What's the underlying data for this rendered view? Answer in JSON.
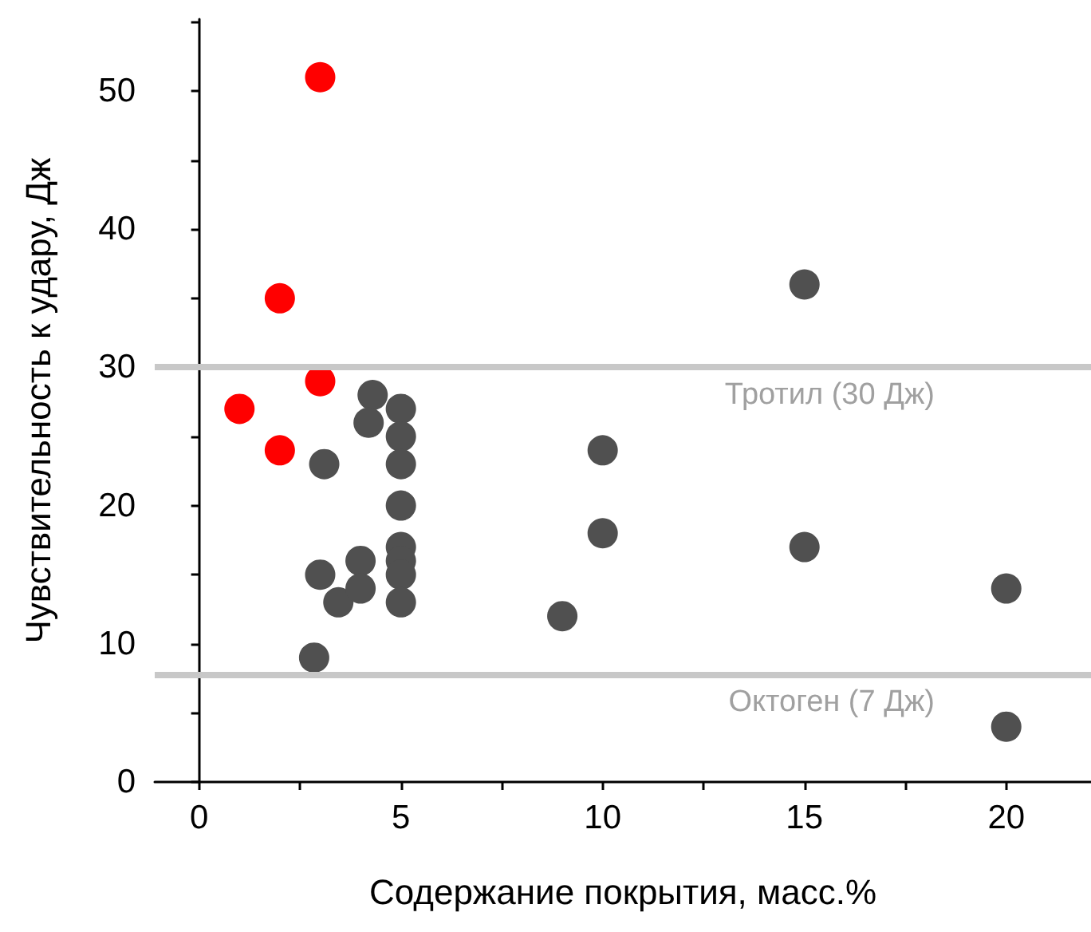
{
  "chart_data": {
    "type": "scatter",
    "xlabel": "Содержание покрытия, масс.%",
    "ylabel": "Чувствительность к удару, Дж",
    "xlim": [
      -1.1,
      22.1
    ],
    "ylim": [
      0,
      55.2
    ],
    "xticks": [
      0,
      5,
      10,
      15,
      20
    ],
    "yticks": [
      0,
      10,
      20,
      30,
      40,
      50
    ],
    "grid": false,
    "marker": "circle",
    "series": [
      {
        "color": "#ff0000",
        "x": [
          3,
          2,
          3,
          1,
          2
        ],
        "values": [
          51,
          35,
          29,
          27,
          24
        ]
      },
      {
        "color": "#505050",
        "x": [
          3.1,
          4.3,
          4.2,
          5,
          5,
          5,
          5,
          5,
          5,
          5,
          5,
          3,
          3.45,
          4,
          4,
          2.85,
          9,
          10,
          10,
          15,
          15,
          20,
          20
        ],
        "values": [
          23,
          28,
          26,
          27,
          25,
          23,
          20,
          17,
          16,
          15,
          13,
          15,
          13,
          16,
          14,
          9,
          12,
          24,
          18,
          36,
          17,
          14,
          4
        ]
      }
    ],
    "ref_lines": [
      {
        "axis": "y",
        "value": 30,
        "label": "Тротил (30 Дж)",
        "color": "#c8c8c8"
      },
      {
        "axis": "y",
        "value": 7.8,
        "label": "Октоген (7 Дж)",
        "color": "#c8c8c8"
      }
    ]
  }
}
